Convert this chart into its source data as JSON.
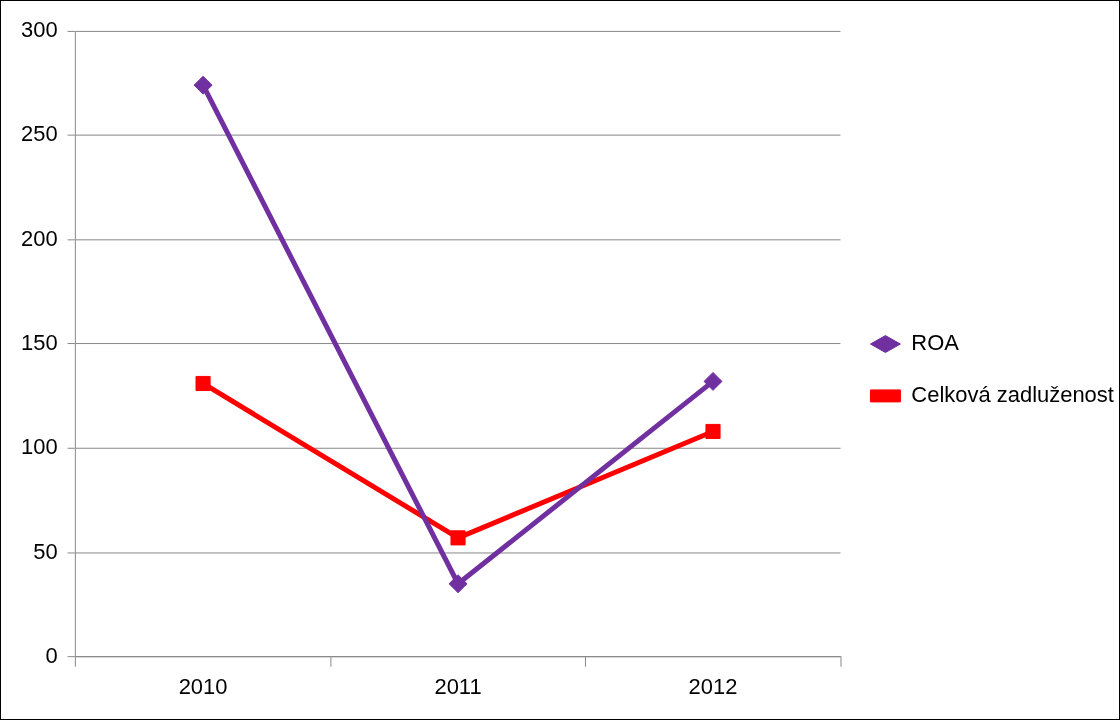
{
  "chart_data": {
    "type": "line",
    "categories": [
      "2010",
      "2011",
      "2012"
    ],
    "series": [
      {
        "name": "ROA",
        "color": "#7030a0",
        "marker": "diamond",
        "values": [
          274,
          35,
          132
        ]
      },
      {
        "name": "Celková zadluženost",
        "color": "#ff0000",
        "marker": "square",
        "values": [
          131,
          57,
          108
        ]
      }
    ],
    "ylim": [
      0,
      300
    ],
    "yticks": [
      0,
      50,
      100,
      150,
      200,
      250,
      300
    ],
    "grid": "y",
    "legend": "right",
    "line_style": "solid"
  }
}
